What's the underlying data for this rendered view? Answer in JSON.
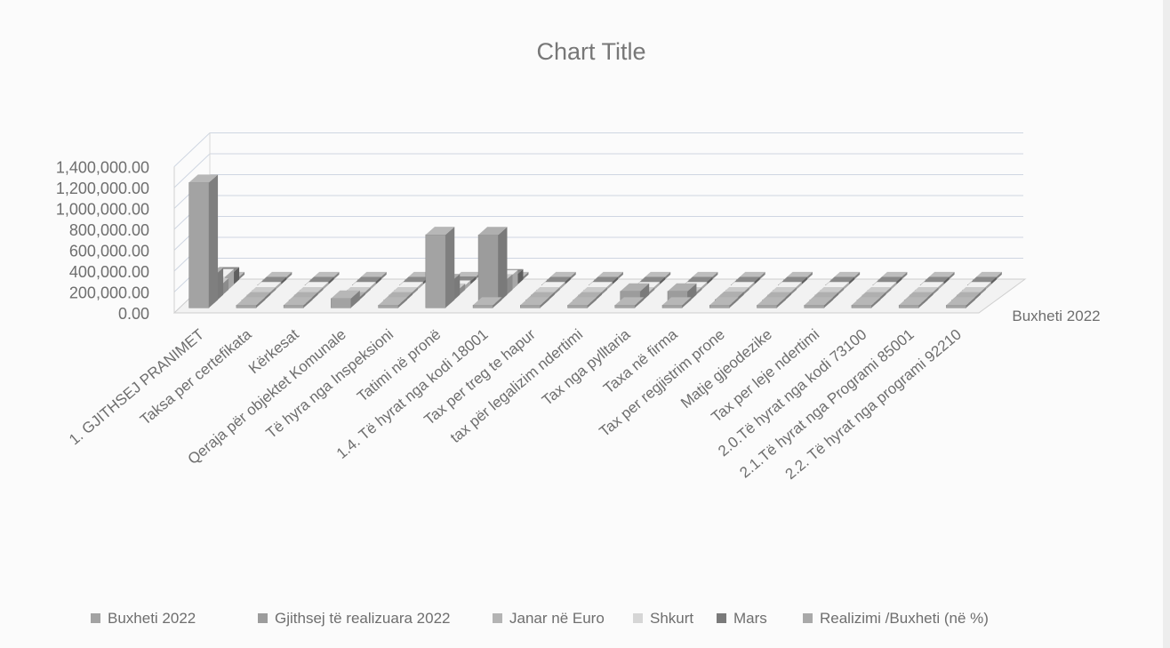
{
  "chart_data": {
    "type": "bar",
    "title": "Chart Title",
    "xlabel": "",
    "ylabel": "",
    "ylim": [
      0,
      1400000
    ],
    "y_ticks": [
      "1,400,000.00",
      "1,200,000.00",
      "1,000,000.00",
      "800,000.00",
      "600,000.00",
      "400,000.00",
      "200,000.00",
      "0.00"
    ],
    "depth_axis_label": "Buxheti  2022",
    "grid": true,
    "three_d": true,
    "legend_position": "bottom",
    "categories": [
      "1. GJITHSEJ PRANIMET",
      "Taksa per certefikata",
      "Kërkesat",
      "Qeraja për objektet Komunale",
      "Të hyra nga Inspeksioni",
      "Tatimi në pronë",
      "1.4. Të hyrat nga kodi 18001",
      "Tax per treg te hapur",
      "tax për  legalizim ndertimi",
      "Tax nga pylltaria",
      "Taxa në firma",
      "Tax per regjistrim prone",
      "Matje gjeodezike",
      "Tax per leje ndertimi",
      "2.0.Të hyrat nga kodi 73100",
      "2.1.Të hyrat nga Programi 85001",
      "2.2. Të hyrat nga programi 92210"
    ],
    "series": [
      {
        "name": "Buxheti  2022",
        "color": "#a3a3a3",
        "values": [
          1200000,
          20000,
          0,
          90000,
          0,
          700000,
          0,
          0,
          0,
          0,
          10000,
          0,
          0,
          0,
          0,
          0,
          0
        ]
      },
      {
        "name": "Gjithsej të realizuara 2022",
        "color": "#9c9c9c",
        "values": [
          260000,
          5000,
          0,
          0,
          0,
          200000,
          650000,
          0,
          0,
          110000,
          110000,
          30000,
          0,
          0,
          0,
          0,
          0
        ]
      },
      {
        "name": "Janar  në Euro",
        "color": "#b4b4b4",
        "values": [
          110000,
          0,
          0,
          0,
          0,
          60000,
          150000,
          0,
          0,
          0,
          0,
          0,
          0,
          0,
          0,
          0,
          0
        ]
      },
      {
        "name": "Shkurt",
        "color": "#d6d6d6",
        "values": [
          150000,
          0,
          0,
          0,
          0,
          40000,
          140000,
          0,
          0,
          0,
          0,
          0,
          0,
          0,
          0,
          0,
          0
        ]
      },
      {
        "name": "Mars",
        "color": "#7a7a7a",
        "values": [
          120000,
          0,
          0,
          0,
          0,
          30000,
          100000,
          0,
          0,
          0,
          0,
          0,
          0,
          0,
          0,
          0,
          0
        ]
      },
      {
        "name": "Realizimi  /Buxheti  (në %)",
        "color": "#a9a9a9",
        "values": [
          25,
          0,
          0,
          0,
          0,
          30,
          0,
          0,
          0,
          0,
          0,
          0,
          0,
          0,
          0,
          0,
          0
        ]
      }
    ]
  }
}
